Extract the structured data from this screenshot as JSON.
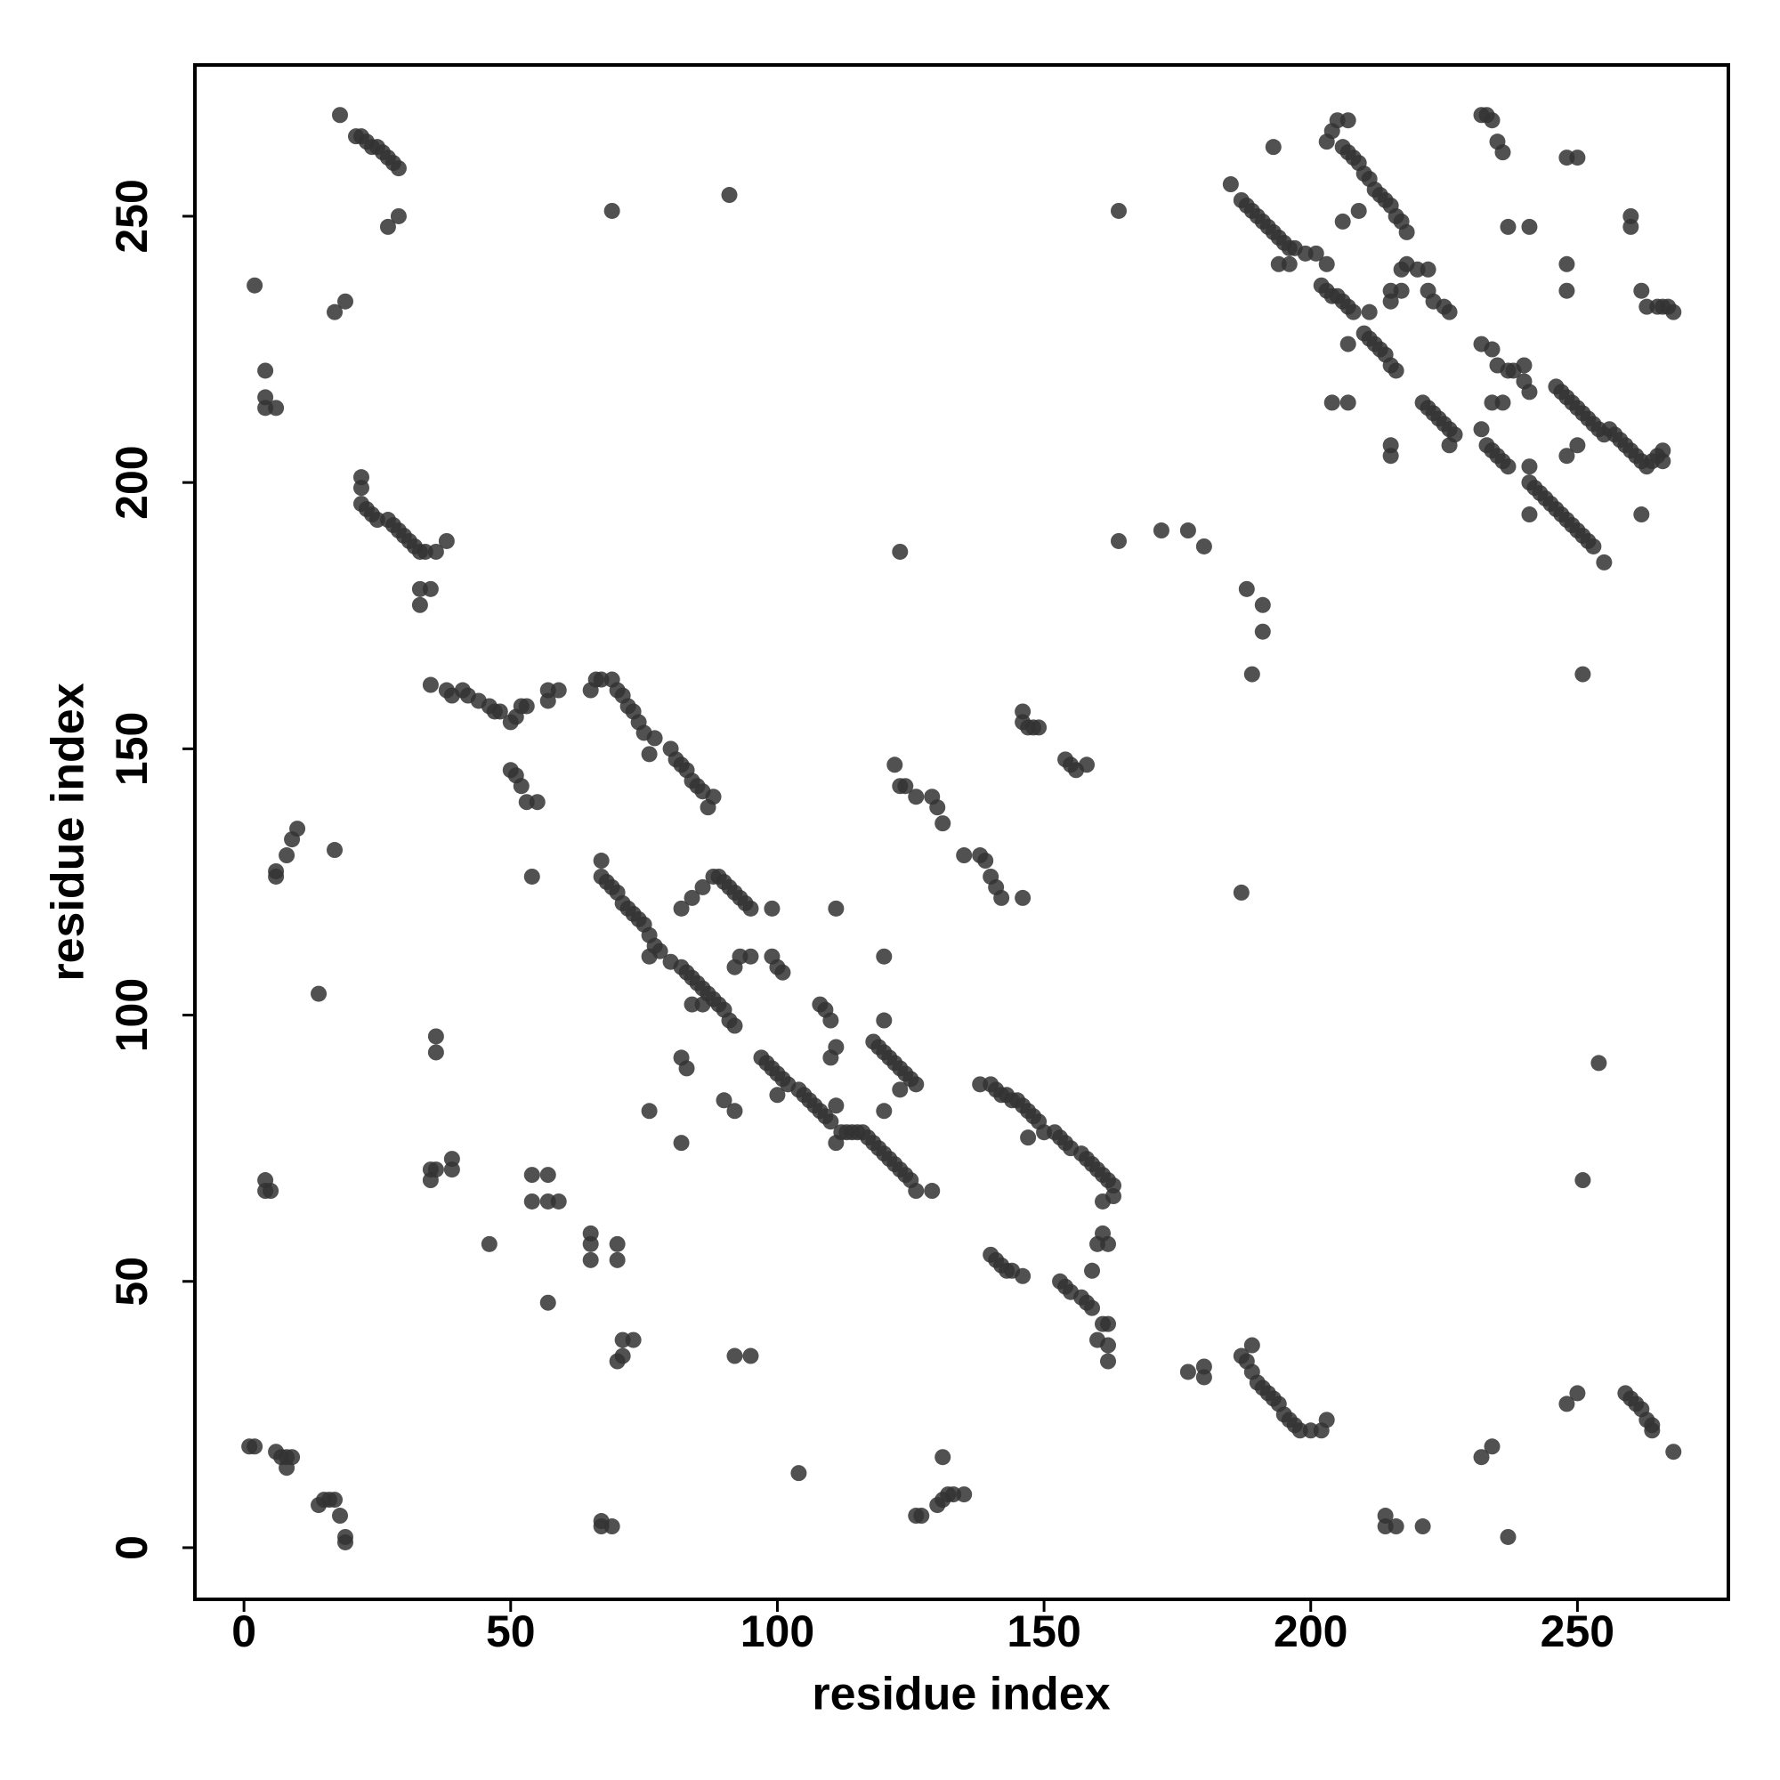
{
  "chart_data": {
    "type": "scatter",
    "x_label": "residue index",
    "y_label": "residue index",
    "xlim": [
      -9.2,
      278.3
    ],
    "ylim": [
      -9.7,
      278.4
    ],
    "xticks": [
      0,
      50,
      100,
      150,
      200,
      250
    ],
    "yticks": [
      0,
      50,
      100,
      150,
      200,
      250
    ],
    "color": "#333333",
    "alpha": 0.85,
    "x": [
      18,
      21,
      22,
      23,
      24,
      25,
      26,
      27,
      28,
      29,
      27,
      29,
      2,
      17,
      19,
      4,
      4,
      4,
      6,
      22,
      22,
      22,
      23,
      24,
      25,
      27,
      28,
      29,
      30,
      31,
      32,
      33,
      34,
      36,
      38,
      33,
      35,
      33,
      35,
      38,
      39,
      41,
      42,
      44,
      46,
      47,
      48,
      50,
      51,
      52,
      53,
      57,
      57,
      59,
      50,
      51,
      52,
      53,
      55,
      65,
      66,
      67,
      69,
      70,
      71,
      72,
      73,
      74,
      75,
      76,
      77,
      80,
      81,
      82,
      83,
      84,
      85,
      86,
      87,
      88,
      10,
      9,
      8,
      6,
      6,
      17,
      54,
      67,
      67,
      68,
      69,
      70,
      71,
      72,
      73,
      74,
      75,
      76,
      77,
      78,
      76,
      80,
      82,
      83,
      84,
      85,
      86,
      87,
      88,
      89,
      90,
      91,
      92,
      84,
      86,
      82,
      84,
      86,
      88,
      89,
      90,
      91,
      92,
      93,
      94,
      95,
      99,
      93,
      95,
      92,
      99,
      100,
      101,
      111,
      120,
      108,
      109,
      110,
      111,
      110,
      111,
      113,
      114,
      115,
      97,
      98,
      99,
      100,
      101,
      102,
      104,
      105,
      106,
      107,
      108,
      109,
      110,
      112,
      116,
      117,
      118,
      119,
      120,
      121,
      122,
      123,
      124,
      125,
      126,
      129,
      111,
      118,
      119,
      120,
      121,
      122,
      123,
      124,
      125,
      126,
      120,
      120,
      123,
      100,
      82,
      83,
      90,
      92,
      76,
      82,
      36,
      36,
      14,
      35,
      36,
      39,
      39,
      35,
      4,
      4,
      5,
      54,
      57,
      54,
      57,
      59,
      46,
      65,
      65,
      65,
      70,
      70,
      57,
      71,
      73,
      70,
      71,
      92,
      95,
      1,
      2,
      6,
      7,
      8,
      9,
      8,
      14,
      15,
      16,
      17,
      18,
      19,
      19,
      67,
      67,
      69,
      104,
      126,
      127,
      130,
      131,
      132,
      133,
      135,
      131,
      130,
      129,
      131,
      122,
      123,
      124,
      126,
      135,
      138,
      139,
      140,
      141,
      142,
      146,
      123,
      138,
      140,
      141,
      142,
      143,
      144,
      145,
      146,
      147,
      148,
      149,
      150,
      152,
      153,
      154,
      155,
      157,
      158,
      159,
      160,
      161,
      162,
      163,
      163,
      161,
      147,
      140,
      141,
      142,
      143,
      144,
      146,
      153,
      154,
      155,
      157,
      158,
      159,
      159,
      160,
      161,
      162,
      161,
      162,
      160,
      162,
      162,
      146,
      146,
      147,
      148,
      149,
      154,
      155,
      156,
      158,
      164,
      172,
      177,
      180,
      188,
      191,
      191,
      189,
      187,
      164,
      69,
      91,
      187,
      188,
      189,
      189,
      190,
      191,
      192,
      193,
      194,
      195,
      196,
      197,
      198,
      200,
      202,
      203,
      177,
      180,
      180,
      214,
      214,
      216,
      221,
      232,
      234,
      237,
      248,
      250,
      259,
      260,
      261,
      262,
      263,
      264,
      264,
      268,
      251,
      254,
      185,
      187,
      188,
      189,
      190,
      191,
      192,
      193,
      194,
      195,
      196,
      197,
      199,
      201,
      194,
      196,
      203,
      193,
      203,
      204,
      205,
      207,
      206,
      207,
      208,
      209,
      210,
      211,
      212,
      213,
      214,
      215,
      216,
      217,
      218,
      206,
      209,
      218,
      217,
      215,
      217,
      220,
      222,
      215,
      222,
      223,
      225,
      226,
      202,
      203,
      204,
      205,
      206,
      207,
      208,
      211,
      207,
      210,
      211,
      212,
      213,
      214,
      215,
      216,
      215,
      215,
      204,
      207,
      221,
      222,
      223,
      224,
      225,
      226,
      227,
      226,
      232,
      234,
      235,
      237,
      238,
      240,
      241,
      240,
      232,
      233,
      234,
      235,
      236,
      237,
      234,
      236,
      241,
      241,
      242,
      243,
      244,
      245,
      246,
      247,
      248,
      249,
      250,
      251,
      252,
      253,
      255,
      241,
      246,
      247,
      248,
      249,
      250,
      251,
      252,
      253,
      254,
      255,
      256,
      257,
      258,
      259,
      260,
      261,
      262,
      263,
      264,
      265,
      266,
      266,
      248,
      250,
      262,
      251,
      232,
      233,
      234,
      235,
      236,
      237,
      241,
      248,
      250,
      248,
      248,
      260,
      260,
      262,
      263,
      265,
      266,
      267,
      268
    ],
    "values": [
      269,
      265,
      265,
      264,
      263,
      263,
      262,
      261,
      260,
      259,
      248,
      250,
      237,
      232,
      234,
      221,
      216,
      214,
      214,
      201,
      199,
      196,
      195,
      194,
      193,
      193,
      192,
      191,
      190,
      189,
      188,
      187,
      187,
      187,
      189,
      180,
      180,
      177,
      162,
      161,
      160,
      161,
      160,
      159,
      158,
      157,
      157,
      155,
      156,
      158,
      158,
      159,
      161,
      161,
      146,
      145,
      143,
      140,
      140,
      161,
      163,
      163,
      163,
      161,
      160,
      158,
      157,
      155,
      153,
      149,
      152,
      150,
      148,
      147,
      146,
      144,
      143,
      142,
      139,
      141,
      135,
      133,
      130,
      127,
      126,
      131,
      126,
      129,
      126,
      125,
      124,
      123,
      121,
      120,
      119,
      118,
      117,
      115,
      113,
      112,
      111,
      110,
      109,
      108,
      107,
      106,
      105,
      104,
      103,
      102,
      101,
      99,
      98,
      102,
      102,
      120,
      122,
      124,
      126,
      126,
      125,
      124,
      123,
      122,
      121,
      120,
      120,
      111,
      111,
      109,
      111,
      109,
      108,
      120,
      111,
      102,
      101,
      99,
      94,
      92,
      83,
      78,
      78,
      78,
      92,
      91,
      90,
      89,
      88,
      87,
      86,
      85,
      84,
      83,
      82,
      81,
      80,
      78,
      78,
      77,
      76,
      75,
      74,
      73,
      72,
      71,
      70,
      69,
      67,
      67,
      76,
      95,
      94,
      93,
      92,
      91,
      90,
      89,
      88,
      87,
      99,
      82,
      86,
      85,
      92,
      90,
      84,
      82,
      82,
      76,
      96,
      93,
      104,
      71,
      71,
      73,
      71,
      69,
      69,
      67,
      67,
      70,
      70,
      65,
      65,
      65,
      57,
      59,
      57,
      54,
      57,
      54,
      46,
      39,
      39,
      35,
      36,
      36,
      36,
      19,
      19,
      18,
      17,
      17,
      17,
      15,
      8,
      9,
      9,
      9,
      6,
      2,
      1,
      5,
      4,
      4,
      14,
      6,
      6,
      8,
      9,
      10,
      10,
      10,
      17,
      139,
      141,
      136,
      147,
      143,
      143,
      141,
      130,
      130,
      129,
      126,
      124,
      122,
      122,
      187,
      87,
      87,
      86,
      85,
      85,
      84,
      84,
      83,
      82,
      81,
      80,
      78,
      78,
      77,
      76,
      75,
      74,
      73,
      72,
      71,
      70,
      69,
      68,
      66,
      65,
      77,
      55,
      54,
      53,
      52,
      52,
      51,
      50,
      49,
      48,
      47,
      46,
      45,
      52,
      57,
      59,
      57,
      42,
      42,
      39,
      38,
      35,
      157,
      155,
      154,
      154,
      154,
      148,
      147,
      146,
      147,
      189,
      191,
      191,
      188,
      180,
      177,
      172,
      164,
      123,
      251,
      251,
      254,
      36,
      35,
      38,
      33,
      31,
      30,
      29,
      28,
      27,
      25,
      24,
      23,
      22,
      22,
      22,
      24,
      33,
      34,
      32,
      6,
      4,
      4,
      4,
      17,
      19,
      2,
      27,
      29,
      29,
      28,
      27,
      26,
      24,
      23,
      22,
      18,
      69,
      91,
      256,
      253,
      252,
      251,
      250,
      249,
      248,
      247,
      246,
      245,
      244,
      244,
      243,
      243,
      241,
      241,
      241,
      263,
      264,
      266,
      268,
      268,
      263,
      262,
      261,
      260,
      258,
      257,
      255,
      254,
      253,
      252,
      250,
      249,
      247,
      249,
      251,
      241,
      240,
      236,
      236,
      240,
      240,
      234,
      236,
      234,
      233,
      232,
      237,
      236,
      235,
      235,
      234,
      233,
      232,
      232,
      226,
      228,
      227,
      226,
      225,
      224,
      222,
      221,
      207,
      205,
      215,
      215,
      215,
      214,
      213,
      212,
      211,
      210,
      209,
      207,
      226,
      225,
      222,
      221,
      221,
      219,
      217,
      222,
      210,
      207,
      206,
      205,
      204,
      203,
      215,
      215,
      203,
      200,
      199,
      198,
      197,
      196,
      195,
      194,
      193,
      192,
      191,
      190,
      189,
      188,
      185,
      194,
      218,
      217,
      216,
      215,
      214,
      213,
      212,
      211,
      210,
      209,
      210,
      209,
      208,
      207,
      206,
      205,
      204,
      203,
      204,
      205,
      204,
      206,
      205,
      207,
      194,
      164,
      269,
      269,
      268,
      264,
      262,
      248,
      248,
      261,
      261,
      241,
      236,
      250,
      248,
      236,
      233,
      233,
      233,
      233,
      232
    ]
  }
}
